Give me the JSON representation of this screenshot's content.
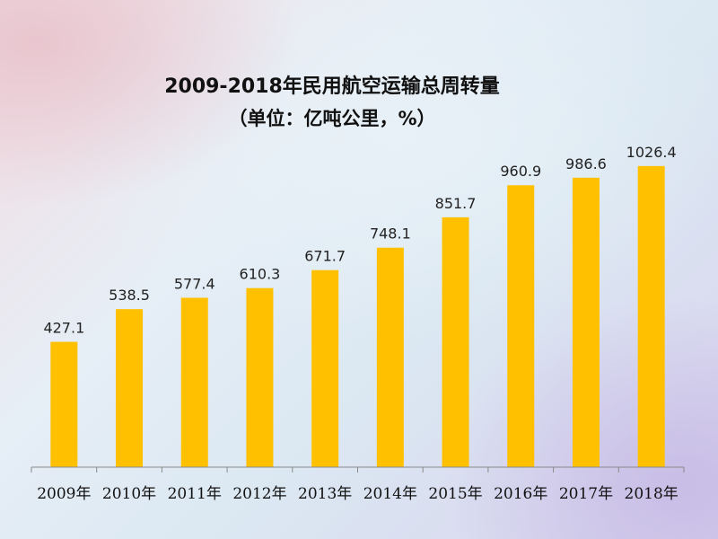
{
  "chart_data": {
    "type": "bar",
    "title": "2009-2018年民用航空运输总周转量",
    "subtitle": "（单位：亿吨公里，%）",
    "categories": [
      "2009年",
      "2010年",
      "2011年",
      "2012年",
      "2013年",
      "2014年",
      "2015年",
      "2016年",
      "2017年",
      "2018年"
    ],
    "values": [
      427.1,
      538.5,
      577.4,
      610.3,
      671.7,
      748.1,
      851.7,
      960.9,
      986.6,
      1026.4
    ],
    "value_labels": [
      "427.1",
      "538.5",
      "577.4",
      "610.3",
      "671.7",
      "748.1",
      "851.7",
      "960.9",
      "986.6",
      "1026.4"
    ],
    "bar_color": "#ffc000",
    "ylim": [
      0,
      1225
    ],
    "grid": false,
    "legend": "none"
  }
}
